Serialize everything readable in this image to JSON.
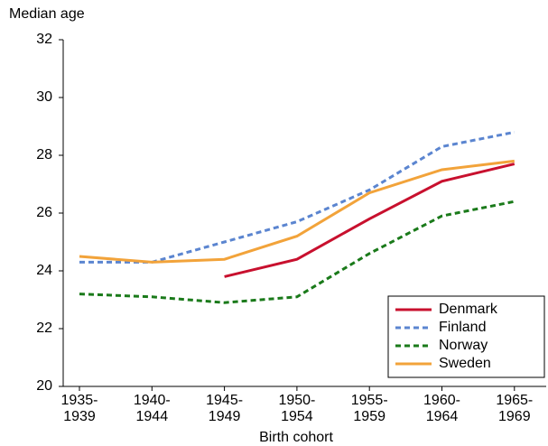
{
  "chart_data": {
    "type": "line",
    "ylabel": "Median age",
    "xlabel": "Birth cohort",
    "categories": [
      "1935-\n1939",
      "1940-\n1944",
      "1945-\n1949",
      "1950-\n1954",
      "1955-\n1959",
      "1960-\n1964",
      "1965-\n1969"
    ],
    "series": [
      {
        "name": "Denmark",
        "color": "#c8102e",
        "style": "solid",
        "values": [
          null,
          null,
          23.8,
          24.4,
          25.8,
          27.1,
          27.7
        ]
      },
      {
        "name": "Finland",
        "color": "#5b85d0",
        "style": "dashed",
        "values": [
          24.3,
          24.3,
          25.0,
          25.7,
          26.8,
          28.3,
          28.8
        ]
      },
      {
        "name": "Norway",
        "color": "#1a7a1a",
        "style": "dashed",
        "values": [
          23.2,
          23.1,
          22.9,
          23.1,
          24.6,
          25.9,
          26.4
        ]
      },
      {
        "name": "Sweden",
        "color": "#f2a33a",
        "style": "solid",
        "values": [
          24.5,
          24.3,
          24.4,
          25.2,
          26.7,
          27.5,
          27.8
        ]
      }
    ],
    "ylim": [
      20,
      32
    ],
    "yticks": [
      20,
      22,
      24,
      26,
      28,
      30,
      32
    ],
    "grid": false,
    "legend": "lower right"
  }
}
